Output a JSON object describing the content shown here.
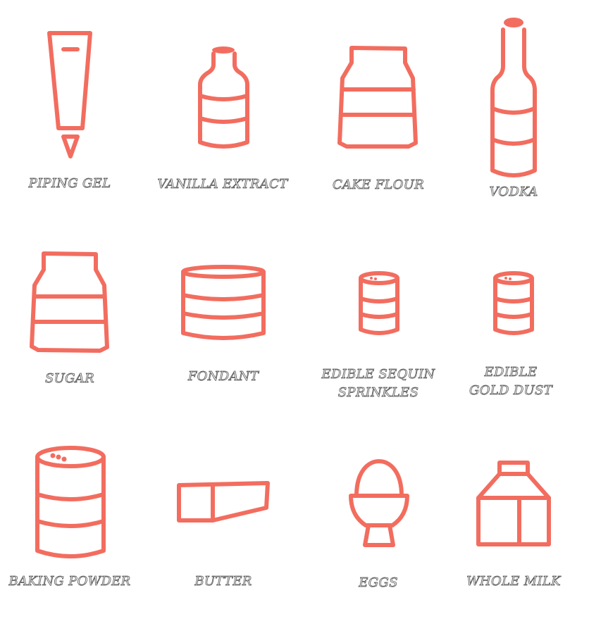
{
  "accent_color": "#f26d5f",
  "items": [
    {
      "label": "PIPING GEL",
      "icon": "piping-gel-tube-icon"
    },
    {
      "label": "VANILLA EXTRACT",
      "icon": "vanilla-bottle-icon"
    },
    {
      "label": "CAKE FLOUR",
      "icon": "flour-jar-icon"
    },
    {
      "label": "VODKA",
      "icon": "vodka-bottle-icon"
    },
    {
      "label": "SUGAR",
      "icon": "sugar-jar-icon"
    },
    {
      "label": "FONDANT",
      "icon": "fondant-tub-icon"
    },
    {
      "label": "EDIBLE SEQUIN",
      "label2": "SPRINKLES",
      "icon": "sprinkles-jar-icon"
    },
    {
      "label": "EDIBLE",
      "label2": "GOLD DUST",
      "icon": "gold-dust-jar-icon"
    },
    {
      "label": "BAKING POWDER",
      "icon": "baking-powder-can-icon"
    },
    {
      "label": "BUTTER",
      "icon": "butter-block-icon"
    },
    {
      "label": "EGGS",
      "icon": "egg-cup-icon"
    },
    {
      "label": "WHOLE MILK",
      "icon": "milk-carton-icon"
    }
  ]
}
